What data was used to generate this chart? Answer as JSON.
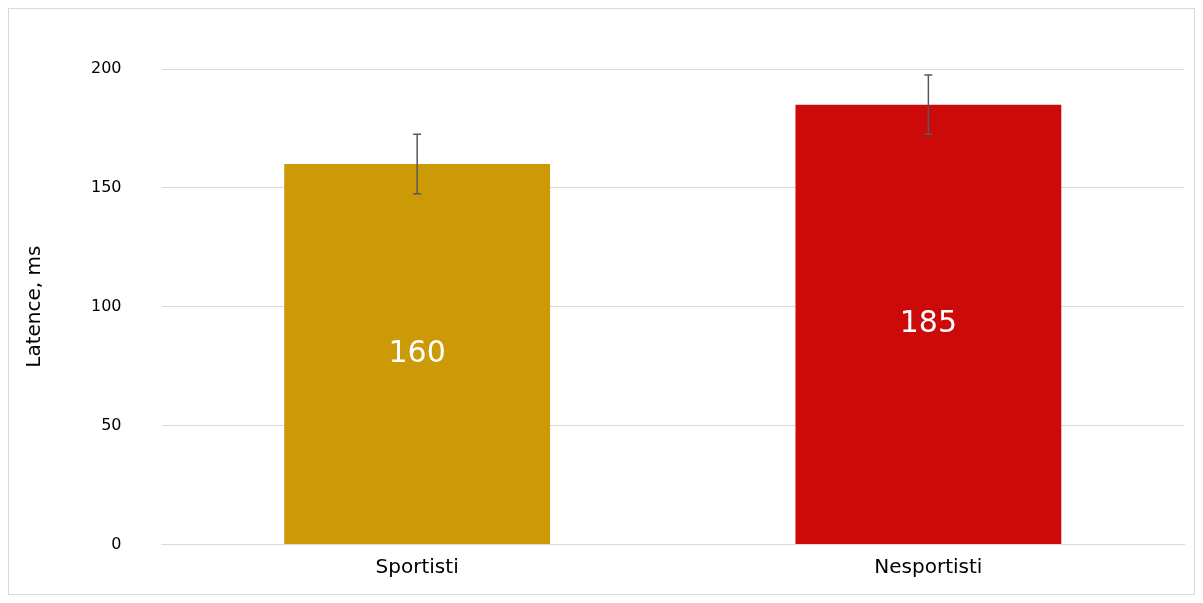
{
  "chart_data": {
    "type": "bar",
    "ylabel": "Latence, ms",
    "categories": [
      "Sportisti",
      "Nesportisti"
    ],
    "values": [
      160,
      185
    ],
    "colors": [
      "#cc9a06",
      "#cc0a0a"
    ],
    "errors": [
      12.5,
      12.5
    ],
    "ylim": [
      0,
      200
    ],
    "yticks": [
      0,
      50,
      100,
      150,
      200
    ],
    "grid": "y",
    "data_labels": true
  }
}
